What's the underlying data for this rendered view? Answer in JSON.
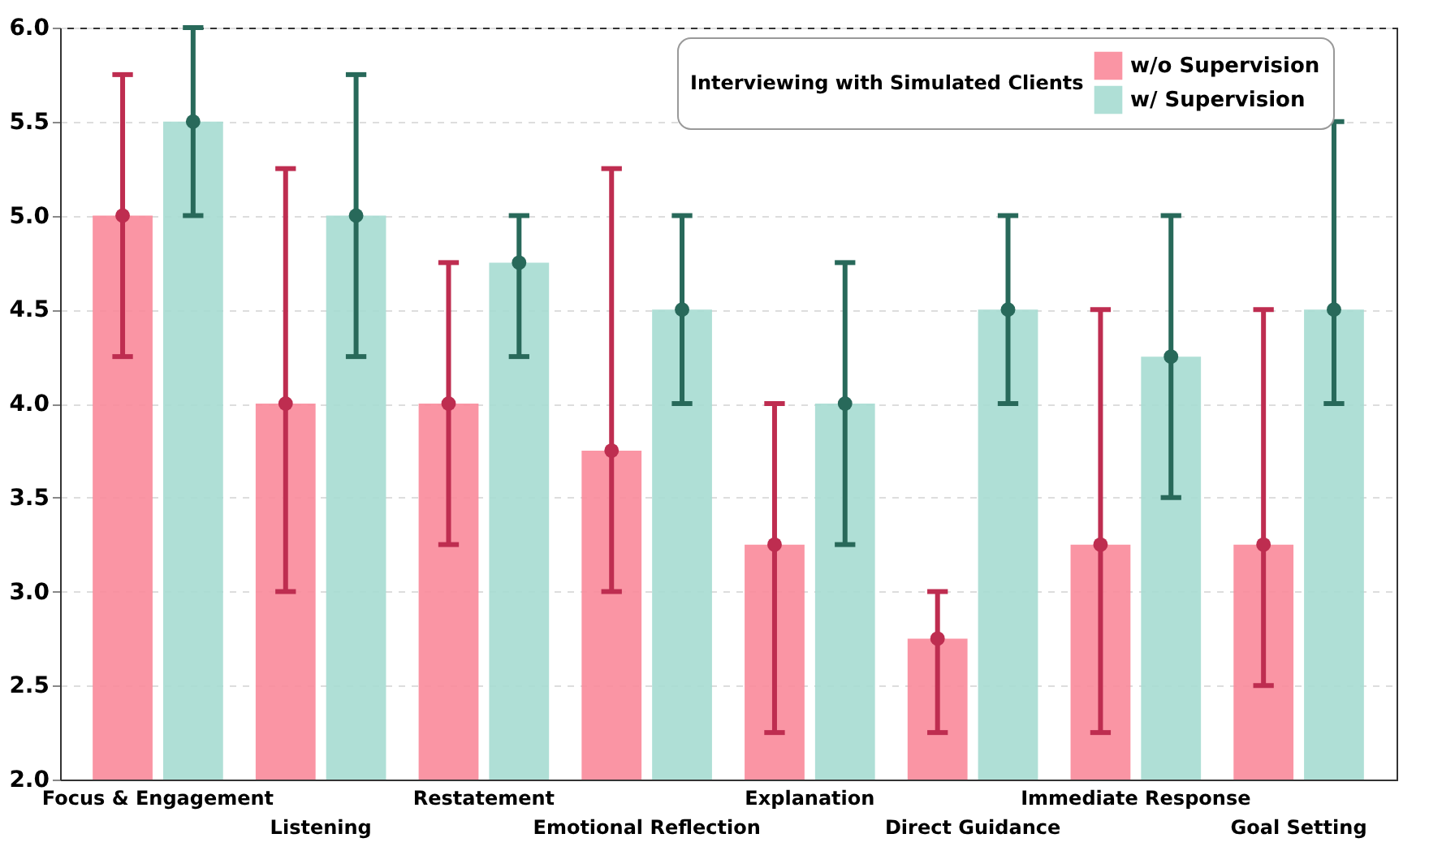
{
  "chart_data": {
    "type": "bar",
    "legend_title": "Interviewing with Simulated Clients",
    "categories": [
      "Focus & Engagement",
      "Listening",
      "Restatement",
      "Emotional Reflection",
      "Explanation",
      "Direct Guidance",
      "Immediate Response",
      "Goal Setting"
    ],
    "series": [
      {
        "name": "w/o Supervision",
        "color": "#f98a9a",
        "values": [
          5.0,
          4.0,
          4.0,
          3.75,
          3.25,
          2.75,
          3.25,
          3.25
        ]
      },
      {
        "name": "w/ Supervision",
        "color": "#a6dcd2",
        "values": [
          5.5,
          5.0,
          4.75,
          4.5,
          4.0,
          4.5,
          4.25,
          4.5
        ]
      },
      {
        "type": "scatter",
        "color": "#be2d50",
        "x": [
          "Focus & Engagement",
          "Listening",
          "Restatement",
          "Emotional Reflection",
          "Explanation",
          "Direct Guidance",
          "Immediate Response",
          "Goal Setting"
        ],
        "values": [
          5.0,
          4.0,
          4.0,
          3.75,
          3.25,
          2.75,
          3.25,
          3.25
        ],
        "errors": [
          [
            4.25,
            5.75
          ],
          [
            3.0,
            5.25
          ],
          [
            3.25,
            4.75
          ],
          [
            3.0,
            5.25
          ],
          [
            2.25,
            4.0
          ],
          [
            2.25,
            3.0
          ],
          [
            2.25,
            4.5
          ],
          [
            2.5,
            4.5
          ]
        ]
      },
      {
        "type": "scatter",
        "color": "#28695a",
        "x": [
          "Focus & Engagement",
          "Listening",
          "Restatement",
          "Emotional Reflection",
          "Explanation",
          "Direct Guidance",
          "Immediate Response",
          "Goal Setting"
        ],
        "values": [
          5.5,
          5.0,
          4.75,
          4.5,
          4.0,
          4.5,
          4.25,
          4.5
        ],
        "errors": [
          [
            5.0,
            6.0
          ],
          [
            4.25,
            5.75
          ],
          [
            4.25,
            5.0
          ],
          [
            4.0,
            5.0
          ],
          [
            3.25,
            4.75
          ],
          [
            4.0,
            5.0
          ],
          [
            3.5,
            5.0
          ],
          [
            4.0,
            5.5
          ]
        ]
      }
    ],
    "ylim": [
      2.0,
      6.0
    ],
    "yticks": [
      {
        "value": 2,
        "label": "2.0"
      },
      2.5,
      {
        "value": 3,
        "label": "3.0"
      },
      3.5,
      {
        "value": 4,
        "label": "4.0"
      },
      4.5,
      {
        "value": 5,
        "label": "5.0"
      },
      5.5,
      {
        "value": 6,
        "label": "6.0"
      }
    ],
    "grid": "y",
    "legend": "top right",
    "marker": "circle"
  }
}
